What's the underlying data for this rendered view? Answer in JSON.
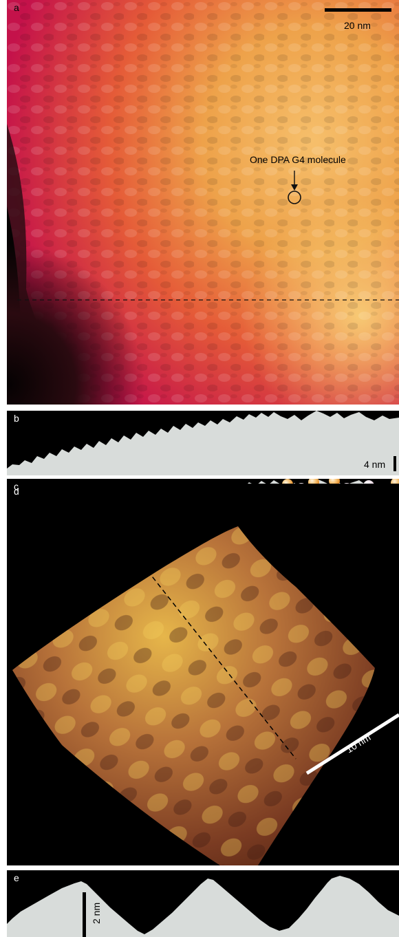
{
  "figure": {
    "panels": [
      {
        "id": "a",
        "label": "a",
        "scale_bar_label": "20 nm",
        "annotation": "One DPA G4 molecule"
      },
      {
        "id": "b",
        "label": "b",
        "scale_bar_label": "4 nm"
      },
      {
        "id": "c",
        "label": "c"
      },
      {
        "id": "d",
        "label": "d",
        "scale_bar_label": "10 nm"
      },
      {
        "id": "e",
        "label": "e",
        "scale_bar_label": "2 nm"
      }
    ],
    "colors": {
      "panel_a_bright": "#f3b45a",
      "panel_a_mid": "#ea8a2c",
      "panel_a_red": "#d81f4a",
      "panel_a_dark": "#0b0504",
      "profile_fill": "#d8dcda",
      "bead_white": "#f7f0f4",
      "bead_orange": "#f0a040",
      "surface_bright": "#e8c04a",
      "surface_dark": "#6b3220"
    }
  }
}
